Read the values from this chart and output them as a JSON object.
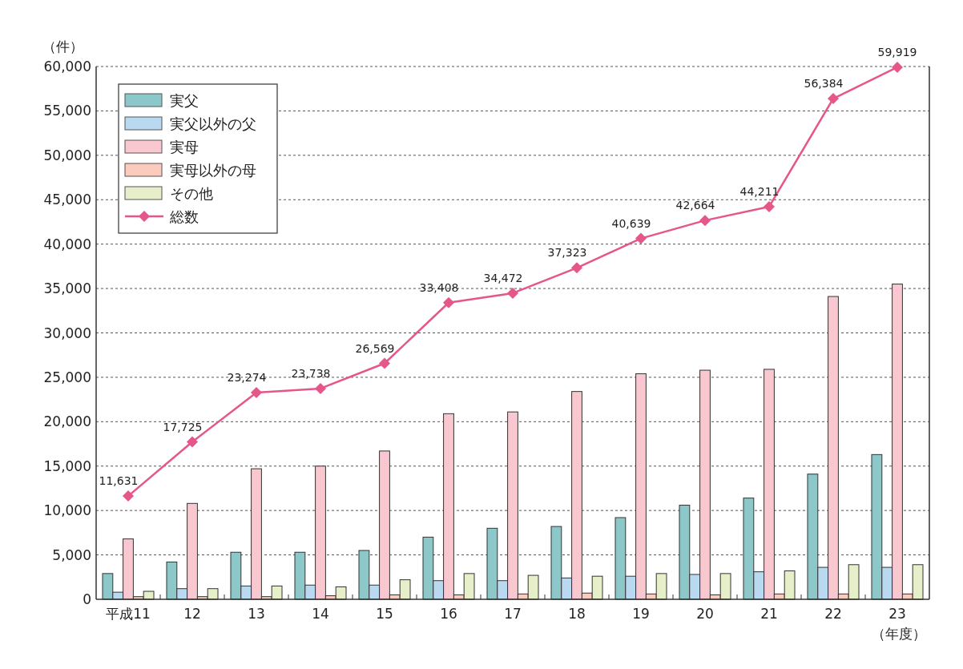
{
  "chart_data": {
    "type": "bar",
    "ylabel": "（件）",
    "xlabel": "（年度）",
    "categories": [
      "平成11",
      "12",
      "13",
      "14",
      "15",
      "16",
      "17",
      "18",
      "19",
      "20",
      "21",
      "22",
      "23"
    ],
    "ylim": [
      0,
      60000
    ],
    "yticks": [
      {
        "value": 0,
        "label": "0"
      },
      {
        "value": 5000,
        "label": "5,000"
      },
      {
        "value": 10000,
        "label": "10,000"
      },
      {
        "value": 15000,
        "label": "15,000"
      },
      {
        "value": 20000,
        "label": "20,000"
      },
      {
        "value": 25000,
        "label": "25,000"
      },
      {
        "value": 30000,
        "label": "30,000"
      },
      {
        "value": 35000,
        "label": "35,000"
      },
      {
        "value": 40000,
        "label": "40,000"
      },
      {
        "value": 45000,
        "label": "45,000"
      },
      {
        "value": 50000,
        "label": "50,000"
      },
      {
        "value": 55000,
        "label": "55,000"
      },
      {
        "value": 60000,
        "label": "60,000"
      }
    ],
    "grid": "y",
    "legend": "top left",
    "series": [
      {
        "name": "実父",
        "color": "#8cc7c9",
        "values": [
          2900,
          4200,
          5300,
          5300,
          5500,
          7000,
          8000,
          8200,
          9200,
          10600,
          11400,
          14100,
          16300
        ]
      },
      {
        "name": "実父以外の父",
        "color": "#b8d9f0",
        "values": [
          800,
          1200,
          1500,
          1600,
          1600,
          2100,
          2100,
          2400,
          2600,
          2800,
          3100,
          3600,
          3600
        ]
      },
      {
        "name": "実母",
        "color": "#f9c7d0",
        "values": [
          6800,
          10800,
          14700,
          15000,
          16700,
          20900,
          21100,
          23400,
          25400,
          25800,
          25900,
          34100,
          35500
        ]
      },
      {
        "name": "実母以外の母",
        "color": "#fbcbbd",
        "values": [
          300,
          300,
          300,
          400,
          500,
          500,
          600,
          700,
          600,
          500,
          600,
          600,
          600
        ]
      },
      {
        "name": "その他",
        "color": "#e6efca",
        "values": [
          900,
          1200,
          1500,
          1400,
          2200,
          2900,
          2700,
          2600,
          2900,
          2900,
          3200,
          3900,
          3900
        ]
      },
      {
        "name": "総数",
        "type": "line",
        "color": "#e5568a",
        "marker": "diamond",
        "line_style": "solid",
        "values": [
          11631,
          17725,
          23274,
          23738,
          26569,
          33408,
          34472,
          37323,
          40639,
          42664,
          44211,
          56384,
          59919
        ],
        "value_labels": [
          "11,631",
          "17,725",
          "23,274",
          "23,738",
          "26,569",
          "33,408",
          "34,472",
          "37,323",
          "40,639",
          "42,664",
          "44,211",
          "56,384",
          "59,919"
        ]
      }
    ]
  }
}
